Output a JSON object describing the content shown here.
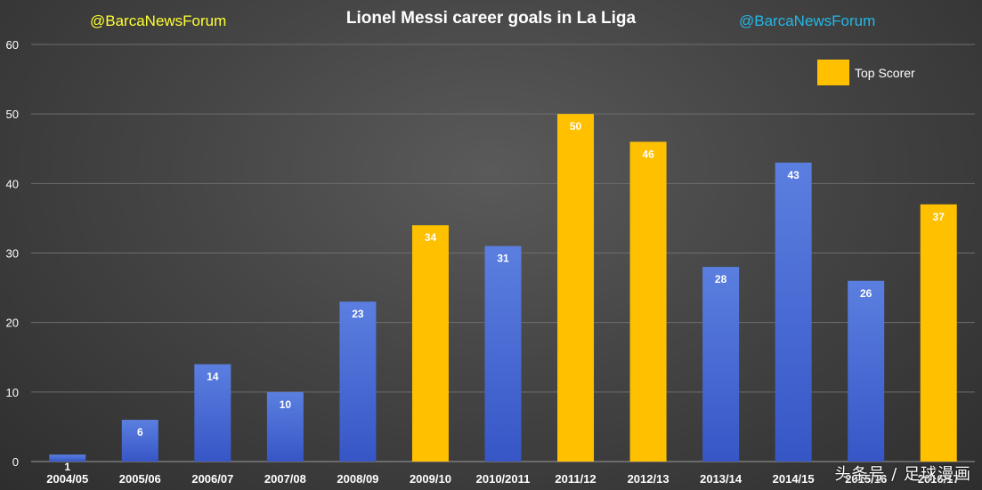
{
  "header": {
    "handle_left": "@BarcaNewsForum",
    "handle_right": "@BarcaNewsForum",
    "title": "Lionel Messi career goals in La Liga"
  },
  "legend": {
    "label": "Top Scorer"
  },
  "watermark": "头条号 / 足球漫画",
  "colors": {
    "handle_left": "#ffff33",
    "handle_right": "#22b8e6",
    "regular_bar": "#4a6fd6",
    "top_scorer_bar": "#ffc000"
  },
  "chart_data": {
    "type": "bar",
    "title": "Lionel Messi career goals in La Liga",
    "categories": [
      "2004/05",
      "2005/06",
      "2006/07",
      "2007/08",
      "2008/09",
      "2009/10",
      "2010/2011",
      "2011/12",
      "2012/13",
      "2013/14",
      "2014/15",
      "2015/16",
      "2016/17"
    ],
    "values": [
      1,
      6,
      14,
      10,
      23,
      34,
      31,
      50,
      46,
      28,
      43,
      26,
      37
    ],
    "top_scorer": [
      false,
      false,
      false,
      false,
      false,
      true,
      false,
      true,
      true,
      false,
      false,
      false,
      true
    ],
    "ylim": [
      0,
      60
    ],
    "yticks": [
      0,
      10,
      20,
      30,
      40,
      50,
      60
    ],
    "grid": true,
    "legend_position": "top-right"
  }
}
